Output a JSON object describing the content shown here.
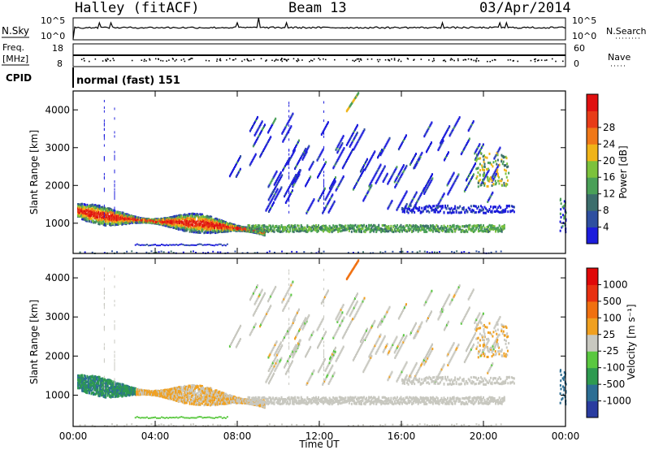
{
  "header": {
    "station": "Halley (fitACF)",
    "beam": "Beam 13",
    "date": "03/Apr/2014"
  },
  "panels": {
    "nsky": {
      "label": "N.Sky",
      "y_top": "10^5",
      "y_bot": "10^0",
      "right_top": "10^5",
      "right_bot": "10^0",
      "right_label": "N.Search"
    },
    "freq": {
      "label_line1": "Freq.",
      "label_line2": "[MHz]",
      "y_top": "18",
      "y_bot": "8",
      "right_top": "60",
      "right_bot": "0",
      "right_label": "Nave"
    },
    "cpid": {
      "label": "CPID",
      "text": "normal (fast) 151"
    }
  },
  "chart_data": [
    {
      "type": "heatmap",
      "name": "power",
      "ylabel": "Slant Range [km]",
      "ylim": [
        200,
        4500
      ],
      "yticks": [
        "1000",
        "2000",
        "3000",
        "4000"
      ],
      "xlim_hours": [
        0,
        24
      ],
      "colorbar": {
        "label": "Power [dB]",
        "ticks": [
          "4",
          "8",
          "12",
          "16",
          "20",
          "24",
          "28"
        ],
        "colors": [
          "#1c1cdc",
          "#2e4fa0",
          "#3c6e6c",
          "#4aa058",
          "#7cc23c",
          "#f0b418",
          "#f07818",
          "#e83c18",
          "#e01010"
        ]
      }
    },
    {
      "type": "heatmap",
      "name": "velocity",
      "ylabel": "Slant Range [km]",
      "ylim": [
        200,
        4500
      ],
      "yticks": [
        "1000",
        "2000",
        "3000",
        "4000"
      ],
      "xlim_hours": [
        0,
        24
      ],
      "xlabel": "Time UT",
      "xticks": [
        "00:00",
        "04:00",
        "08:00",
        "12:00",
        "16:00",
        "20:00",
        "00:00"
      ],
      "colorbar": {
        "label": "Velocity [m s⁻¹]",
        "ticks": [
          "1000",
          "500",
          "100",
          "25",
          "-25",
          "-100",
          "-500",
          "-1000"
        ],
        "colors": [
          "#2a3ca0",
          "#2c6e94",
          "#2e9a50",
          "#5ac840",
          "#c8c8c0",
          "#f0a020",
          "#f07010",
          "#e83010",
          "#e00808"
        ]
      }
    }
  ]
}
